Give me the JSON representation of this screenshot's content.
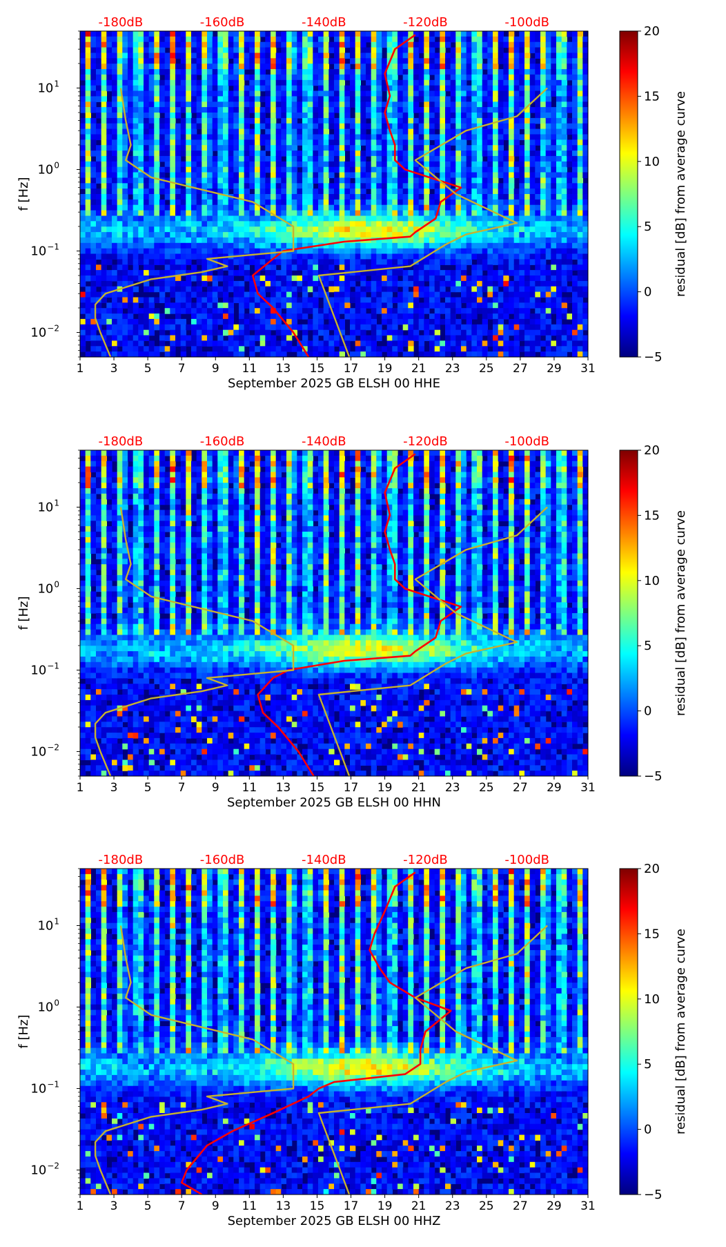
{
  "colors": {
    "noise_curve": "#ff0000",
    "model_curve": "#c8b22e",
    "top_axis_text": "#ff0000",
    "colormap": [
      "#00007f",
      "#0000ff",
      "#007fff",
      "#00ffff",
      "#7fff7f",
      "#ffff00",
      "#ff7f00",
      "#ff0000",
      "#7f0000"
    ]
  },
  "shared": {
    "ylabel": "f [Hz]",
    "x_ticks": [
      "1",
      "3",
      "5",
      "7",
      "9",
      "11",
      "13",
      "15",
      "17",
      "19",
      "21",
      "23",
      "25",
      "27",
      "29",
      "31"
    ],
    "x_range": [
      1,
      31
    ],
    "y_range_hz": [
      0.005,
      50
    ],
    "y_ticks": [
      {
        "value": 0.01,
        "base": "10",
        "exp": "−2"
      },
      {
        "value": 0.1,
        "base": "10",
        "exp": "−1"
      },
      {
        "value": 1,
        "base": "10",
        "exp": "0"
      },
      {
        "value": 10,
        "base": "10",
        "exp": "1"
      }
    ],
    "top_axis_labels": [
      "-180dB",
      "-160dB",
      "-140dB",
      "-120dB",
      "-100dB"
    ],
    "top_axis_db": [
      -180,
      -160,
      -140,
      -120,
      -100
    ],
    "top_axis_db_range": [
      -188,
      -88
    ],
    "colorbar": {
      "label": "residual [dB] from average curve",
      "ticks": [
        "20",
        "15",
        "10",
        "5",
        "0",
        "−5"
      ],
      "tick_values": [
        20,
        15,
        10,
        5,
        0,
        -5
      ],
      "range": [
        -5,
        20
      ]
    }
  },
  "chart_data": [
    {
      "type": "heatmap",
      "title": "",
      "xlabel": "September 2025 GB ELSH 00 HHE",
      "ylabel": "f [Hz]",
      "xlim": [
        1,
        31
      ],
      "ylim": [
        0.005,
        50
      ],
      "colorbar_label": "residual [dB] from average curve",
      "clim": [
        -5,
        20
      ],
      "series": [
        {
          "name": "noise level (dB, top axis)",
          "freq_hz": [
            0.005,
            0.01,
            0.02,
            0.03,
            0.05,
            0.08,
            0.1,
            0.13,
            0.15,
            0.17,
            0.25,
            0.4,
            0.6,
            1.0,
            1.3,
            2,
            3,
            5,
            8,
            15,
            30,
            45
          ],
          "db": [
            -143,
            -146,
            -150,
            -153,
            -154,
            -150,
            -148,
            -136,
            -123,
            -122,
            -118,
            -117,
            -113,
            -124,
            -126,
            -126,
            -127,
            -128,
            -127,
            -128,
            -126,
            -122
          ]
        },
        {
          "name": "model curve (dB, top axis)",
          "freq_hz": [
            0.005,
            0.01,
            0.015,
            0.022,
            0.03,
            0.045,
            0.055,
            0.065,
            0.08,
            0.1,
            0.2,
            0.4,
            0.8,
            1.3,
            2,
            4,
            10
          ],
          "db": [
            -182,
            -184,
            -185,
            -185,
            -183,
            -174,
            -164,
            -159,
            -163,
            -146,
            -146,
            -154,
            -174,
            -179,
            -178,
            -179,
            -180
          ]
        },
        {
          "name": "model curve lower branch (dB, top axis)",
          "freq_hz": [
            0.005,
            0.05,
            0.065,
            0.12,
            0.16,
            0.22,
            0.5,
            1.3,
            3,
            4.5,
            10
          ],
          "db": [
            -135,
            -141,
            -123,
            -116,
            -112,
            -102,
            -114,
            -122,
            -112,
            -102,
            -96
          ]
        }
      ]
    },
    {
      "type": "heatmap",
      "title": "",
      "xlabel": "September 2025 GB ELSH 00 HHN",
      "ylabel": "f [Hz]",
      "xlim": [
        1,
        31
      ],
      "ylim": [
        0.005,
        50
      ],
      "colorbar_label": "residual [dB] from average curve",
      "clim": [
        -5,
        20
      ],
      "series": [
        {
          "name": "noise level (dB, top axis)",
          "freq_hz": [
            0.005,
            0.01,
            0.02,
            0.03,
            0.05,
            0.08,
            0.1,
            0.13,
            0.15,
            0.17,
            0.25,
            0.4,
            0.6,
            1.0,
            1.3,
            2,
            3,
            5,
            8,
            15,
            30,
            45
          ],
          "db": [
            -142,
            -145,
            -149,
            -152,
            -153,
            -150,
            -147,
            -136,
            -123,
            -122,
            -118,
            -117,
            -113,
            -124,
            -126,
            -126,
            -127,
            -128,
            -127,
            -128,
            -126,
            -122
          ]
        },
        {
          "name": "model curve (dB, top axis)",
          "freq_hz": [
            0.005,
            0.01,
            0.015,
            0.022,
            0.03,
            0.045,
            0.055,
            0.065,
            0.08,
            0.1,
            0.2,
            0.4,
            0.8,
            1.3,
            2,
            4,
            10
          ],
          "db": [
            -182,
            -184,
            -185,
            -185,
            -183,
            -174,
            -164,
            -159,
            -163,
            -146,
            -146,
            -154,
            -174,
            -179,
            -178,
            -179,
            -180
          ]
        },
        {
          "name": "model curve lower branch (dB, top axis)",
          "freq_hz": [
            0.005,
            0.05,
            0.065,
            0.12,
            0.16,
            0.22,
            0.5,
            1.3,
            3,
            4.5,
            10
          ],
          "db": [
            -135,
            -141,
            -123,
            -116,
            -112,
            -102,
            -114,
            -122,
            -112,
            -102,
            -96
          ]
        }
      ]
    },
    {
      "type": "heatmap",
      "title": "",
      "xlabel": "September 2025 GB ELSH 00 HHZ",
      "ylabel": "f [Hz]",
      "xlim": [
        1,
        31
      ],
      "ylim": [
        0.005,
        50
      ],
      "colorbar_label": "residual [dB] from average curve",
      "clim": [
        -5,
        20
      ],
      "series": [
        {
          "name": "noise level (dB, top axis)",
          "freq_hz": [
            0.005,
            0.007,
            0.01,
            0.02,
            0.03,
            0.05,
            0.08,
            0.1,
            0.12,
            0.15,
            0.2,
            0.3,
            0.5,
            0.9,
            1.3,
            2,
            3,
            5,
            8,
            15,
            30,
            45
          ],
          "db": [
            -164,
            -168,
            -167,
            -163,
            -158,
            -150,
            -143,
            -141,
            -138,
            -124,
            -121,
            -121,
            -120,
            -115,
            -122,
            -127,
            -129,
            -131,
            -130,
            -128,
            -126,
            -122
          ]
        },
        {
          "name": "model curve (dB, top axis)",
          "freq_hz": [
            0.005,
            0.01,
            0.015,
            0.022,
            0.03,
            0.045,
            0.055,
            0.065,
            0.08,
            0.1,
            0.2,
            0.4,
            0.8,
            1.3,
            2,
            4,
            10
          ],
          "db": [
            -182,
            -184,
            -185,
            -185,
            -183,
            -174,
            -164,
            -159,
            -163,
            -146,
            -146,
            -154,
            -174,
            -179,
            -178,
            -179,
            -180
          ]
        },
        {
          "name": "model curve lower branch (dB, top axis)",
          "freq_hz": [
            0.005,
            0.05,
            0.065,
            0.12,
            0.16,
            0.22,
            0.5,
            1.3,
            3,
            4.5,
            10
          ],
          "db": [
            -135,
            -141,
            -123,
            -116,
            -112,
            -102,
            -114,
            -122,
            -112,
            -102,
            -96
          ]
        }
      ]
    }
  ]
}
